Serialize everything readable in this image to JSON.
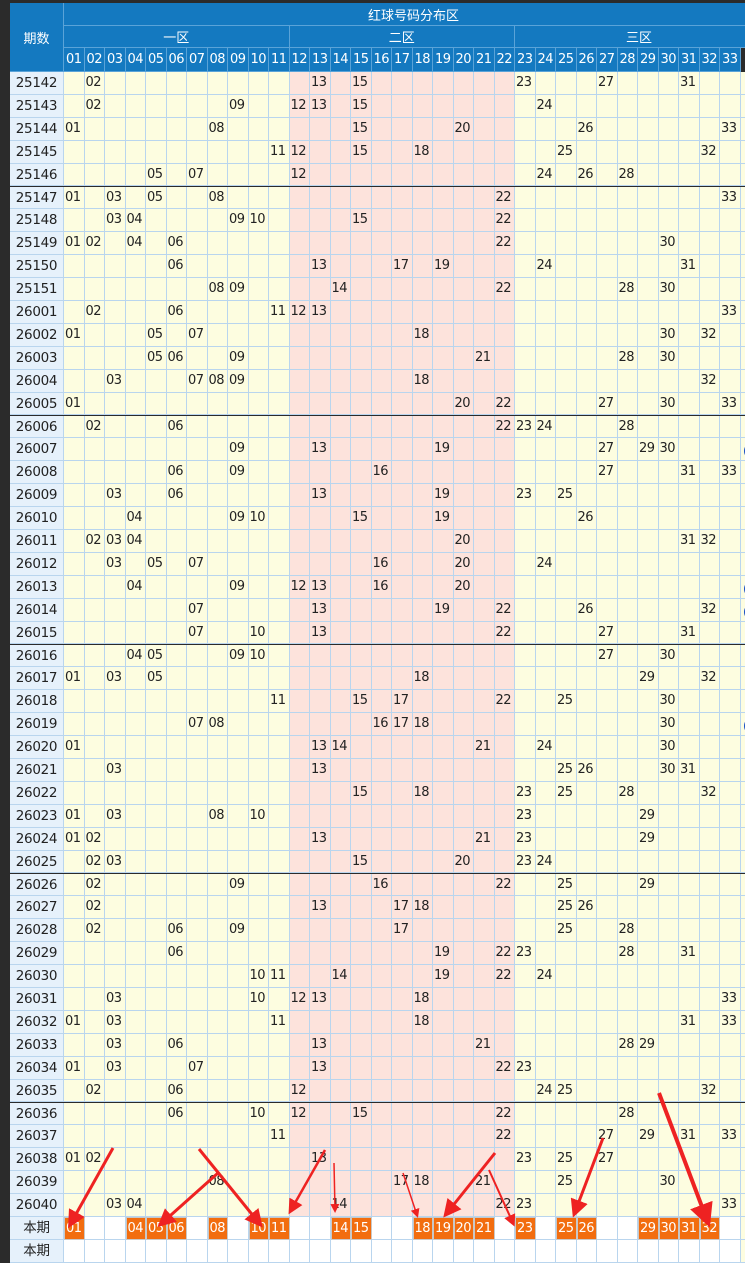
{
  "header": {
    "period_label": "期数",
    "title": "红球号码分布区",
    "zones": [
      "一区",
      "二区",
      "三区"
    ],
    "numbers": [
      "01",
      "02",
      "03",
      "04",
      "05",
      "06",
      "07",
      "08",
      "09",
      "10",
      "11",
      "12",
      "13",
      "14",
      "15",
      "16",
      "17",
      "18",
      "19",
      "20",
      "21",
      "22",
      "23",
      "24",
      "25",
      "26",
      "27",
      "28",
      "29",
      "30",
      "31",
      "32",
      "33"
    ]
  },
  "colors": {
    "header": "#1479c0",
    "zone_yellow": "#fdfde0",
    "zone_pink": "#fde3dc",
    "selected": "#f26d0f",
    "arrow": "#ee2222"
  },
  "rows": [
    {
      "period": "25142",
      "nums": [
        "02",
        "13",
        "15",
        "23",
        "27",
        "31"
      ]
    },
    {
      "period": "25143",
      "nums": [
        "02",
        "09",
        "12",
        "13",
        "15",
        "24"
      ]
    },
    {
      "period": "25144",
      "nums": [
        "01",
        "08",
        "15",
        "20",
        "26",
        "33"
      ]
    },
    {
      "period": "25145",
      "nums": [
        "11",
        "12",
        "15",
        "18",
        "25",
        "32"
      ]
    },
    {
      "period": "25146",
      "nums": [
        "05",
        "07",
        "12",
        "24",
        "26",
        "28"
      ]
    },
    {
      "period": "25147",
      "nums": [
        "01",
        "03",
        "05",
        "08",
        "22",
        "33"
      ]
    },
    {
      "period": "25148",
      "nums": [
        "03",
        "04",
        "09",
        "10",
        "15",
        "22"
      ]
    },
    {
      "period": "25149",
      "nums": [
        "01",
        "02",
        "04",
        "06",
        "22",
        "30"
      ]
    },
    {
      "period": "25150",
      "nums": [
        "06",
        "13",
        "17",
        "19",
        "24",
        "31"
      ]
    },
    {
      "period": "25151",
      "nums": [
        "08",
        "09",
        "14",
        "22",
        "28",
        "30"
      ]
    },
    {
      "period": "26001",
      "nums": [
        "02",
        "06",
        "11",
        "12",
        "13",
        "33"
      ]
    },
    {
      "period": "26002",
      "nums": [
        "01",
        "05",
        "07",
        "18",
        "30",
        "32"
      ]
    },
    {
      "period": "26003",
      "nums": [
        "05",
        "06",
        "09",
        "21",
        "28",
        "30"
      ]
    },
    {
      "period": "26004",
      "nums": [
        "03",
        "07",
        "08",
        "09",
        "18",
        "32"
      ]
    },
    {
      "period": "26005",
      "nums": [
        "01",
        "20",
        "22",
        "27",
        "30",
        "33"
      ]
    },
    {
      "period": "26006",
      "nums": [
        "02",
        "06",
        "22",
        "23",
        "24",
        "28"
      ]
    },
    {
      "period": "26007",
      "nums": [
        "09",
        "13",
        "19",
        "27",
        "29",
        "30"
      ],
      "blue_partial": true
    },
    {
      "period": "26008",
      "nums": [
        "06",
        "09",
        "16",
        "27",
        "31",
        "33"
      ]
    },
    {
      "period": "26009",
      "nums": [
        "03",
        "06",
        "13",
        "19",
        "23",
        "25"
      ]
    },
    {
      "period": "26010",
      "nums": [
        "04",
        "09",
        "10",
        "15",
        "19",
        "26"
      ]
    },
    {
      "period": "26011",
      "nums": [
        "02",
        "03",
        "04",
        "20",
        "31",
        "32"
      ]
    },
    {
      "period": "26012",
      "nums": [
        "03",
        "05",
        "07",
        "16",
        "20",
        "24"
      ]
    },
    {
      "period": "26013",
      "nums": [
        "04",
        "09",
        "12",
        "13",
        "16",
        "20"
      ],
      "blue_partial": true
    },
    {
      "period": "26014",
      "nums": [
        "07",
        "13",
        "19",
        "22",
        "26",
        "32"
      ],
      "blue_partial": true
    },
    {
      "period": "26015",
      "nums": [
        "07",
        "10",
        "13",
        "22",
        "27",
        "31"
      ]
    },
    {
      "period": "26016",
      "nums": [
        "04",
        "05",
        "09",
        "10",
        "27",
        "30"
      ]
    },
    {
      "period": "26017",
      "nums": [
        "01",
        "03",
        "05",
        "18",
        "29",
        "32"
      ]
    },
    {
      "period": "26018",
      "nums": [
        "11",
        "15",
        "17",
        "22",
        "25",
        "30"
      ]
    },
    {
      "period": "26019",
      "nums": [
        "07",
        "08",
        "16",
        "17",
        "18",
        "30"
      ],
      "blue_partial": true
    },
    {
      "period": "26020",
      "nums": [
        "01",
        "13",
        "14",
        "21",
        "24",
        "30"
      ]
    },
    {
      "period": "26021",
      "nums": [
        "03",
        "13",
        "25",
        "26",
        "30",
        "31"
      ]
    },
    {
      "period": "26022",
      "nums": [
        "15",
        "18",
        "23",
        "25",
        "28",
        "32"
      ]
    },
    {
      "period": "26023",
      "nums": [
        "01",
        "03",
        "08",
        "10",
        "23",
        "29"
      ]
    },
    {
      "period": "26024",
      "nums": [
        "01",
        "02",
        "13",
        "21",
        "23",
        "29"
      ]
    },
    {
      "period": "26025",
      "nums": [
        "02",
        "03",
        "15",
        "20",
        "23",
        "24"
      ]
    },
    {
      "period": "26026",
      "nums": [
        "02",
        "09",
        "16",
        "22",
        "25",
        "29"
      ]
    },
    {
      "period": "26027",
      "nums": [
        "02",
        "13",
        "17",
        "18",
        "25",
        "26"
      ]
    },
    {
      "period": "26028",
      "nums": [
        "02",
        "06",
        "09",
        "17",
        "25",
        "28"
      ]
    },
    {
      "period": "26029",
      "nums": [
        "06",
        "19",
        "22",
        "23",
        "28",
        "31"
      ]
    },
    {
      "period": "26030",
      "nums": [
        "10",
        "11",
        "14",
        "19",
        "22",
        "24"
      ]
    },
    {
      "period": "26031",
      "nums": [
        "03",
        "10",
        "12",
        "13",
        "18",
        "33"
      ]
    },
    {
      "period": "26032",
      "nums": [
        "01",
        "03",
        "11",
        "18",
        "31",
        "33"
      ]
    },
    {
      "period": "26033",
      "nums": [
        "03",
        "06",
        "13",
        "21",
        "28",
        "29"
      ]
    },
    {
      "period": "26034",
      "nums": [
        "01",
        "03",
        "07",
        "13",
        "22",
        "23"
      ]
    },
    {
      "period": "26035",
      "nums": [
        "02",
        "06",
        "12",
        "24",
        "25",
        "32"
      ]
    },
    {
      "period": "26036",
      "nums": [
        "06",
        "10",
        "12",
        "15",
        "22",
        "28"
      ]
    },
    {
      "period": "26037",
      "nums": [
        "11",
        "22",
        "27",
        "29",
        "31",
        "33"
      ]
    },
    {
      "period": "26038",
      "nums": [
        "01",
        "02",
        "13",
        "23",
        "25",
        "27"
      ]
    },
    {
      "period": "26039",
      "nums": [
        "08",
        "17",
        "18",
        "21",
        "25",
        "30"
      ]
    },
    {
      "period": "26040",
      "nums": [
        "03",
        "04",
        "14",
        "22",
        "23",
        "33"
      ]
    }
  ],
  "current": {
    "label": "本期",
    "selected": [
      "01",
      "04",
      "05",
      "06",
      "08",
      "10",
      "11",
      "14",
      "15",
      "18",
      "19",
      "20",
      "21",
      "23",
      "25",
      "26",
      "29",
      "30",
      "31",
      "32"
    ]
  },
  "next": {
    "label": "本期"
  }
}
